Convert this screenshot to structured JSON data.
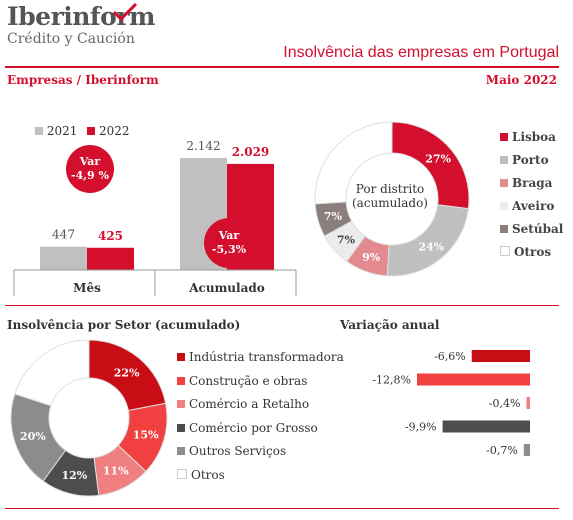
{
  "header": {
    "logo_name": "Iberinform",
    "logo_sub": "Crédito y Caución",
    "title": "Insolvência das empresas em Portugal",
    "source": "Empresas / Iberinform",
    "date": "Maio 2022"
  },
  "colors": {
    "brand_red": "#d40f2e",
    "grey_2021": "#c0c0c0",
    "red_2022": "#d40f2e"
  },
  "bar_panel": {
    "legend": [
      "2021",
      "2022"
    ],
    "badge_top": "Var\n-4,9 %",
    "badge_bottom": "Var\n-5,3%"
  },
  "district_panel": {
    "center_label": "Por distrito\n(acumulado)"
  },
  "sector_panel": {
    "title": "Insolvência por Setor (acumulado)",
    "variation_title": "Variação anual"
  },
  "chart_data": [
    {
      "type": "bar",
      "categories": [
        "Mês",
        "Acumulado"
      ],
      "series": [
        {
          "name": "2021",
          "values": [
            447,
            2142
          ],
          "labels": [
            "447",
            "2.142"
          ],
          "color": "#c0c0c0"
        },
        {
          "name": "2022",
          "values": [
            425,
            2029
          ],
          "labels": [
            "425",
            "2.029"
          ],
          "color": "#d40f2e"
        }
      ],
      "ylim": [
        0,
        2300
      ]
    },
    {
      "type": "pie",
      "title": "Por distrito (acumulado)",
      "labels": [
        "Lisboa",
        "Porto",
        "Braga",
        "Aveiro",
        "Setúbal",
        "Otros"
      ],
      "values": [
        27,
        24,
        9,
        7,
        7,
        26
      ],
      "value_labels": [
        "27%",
        "24%",
        "9%",
        "7%",
        "7%",
        ""
      ],
      "colors": [
        "#d40f2e",
        "#bfbfbf",
        "#e38a8e",
        "#ececec",
        "#8a7f7d",
        "#ffffff"
      ]
    },
    {
      "type": "pie",
      "title": "Insolvência por Setor (acumulado)",
      "labels": [
        "Indústria transformadora",
        "Construção e obras",
        "Comércio a Retalho",
        "Comércio por Grosso",
        "Outros Serviços",
        "Otros"
      ],
      "values": [
        22,
        15,
        11,
        12,
        20,
        20
      ],
      "value_labels": [
        "22%",
        "15%",
        "11%",
        "12%",
        "20%",
        ""
      ],
      "colors": [
        "#c80d14",
        "#f0403f",
        "#f07f7f",
        "#4d4d4d",
        "#8c8c8c",
        "#ffffff"
      ]
    },
    {
      "type": "bar",
      "orientation": "horizontal",
      "title": "Variação anual",
      "categories": [
        "Indústria transformadora",
        "Construção e obras",
        "Comércio a Retalho",
        "Comércio por Grosso",
        "Outros Serviços"
      ],
      "values": [
        -6.6,
        -12.8,
        -0.4,
        -9.9,
        -0.7
      ],
      "value_labels": [
        "-6,6%",
        "-12,8%",
        "-0,4%",
        "-9,9%",
        "-0,7%"
      ],
      "colors": [
        "#c80d14",
        "#f0403f",
        "#f07f7f",
        "#4d4d4d",
        "#8c8c8c"
      ]
    }
  ]
}
